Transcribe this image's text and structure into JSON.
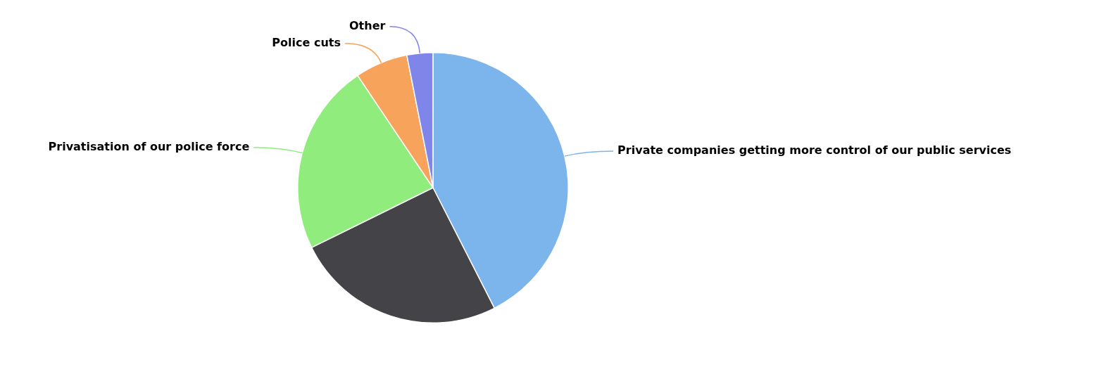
{
  "chart_data": {
    "type": "pie",
    "categories": [
      "Private companies getting more control of our public services",
      null,
      "Privatisation of our police force",
      "Police cuts",
      "Other"
    ],
    "values": [
      42.5,
      25.2,
      22.9,
      6.3,
      3.1
    ],
    "colors": [
      "#7cb5ec",
      "#434348",
      "#90ed7d",
      "#f7a35c",
      "#8085e9"
    ],
    "legend": false
  }
}
